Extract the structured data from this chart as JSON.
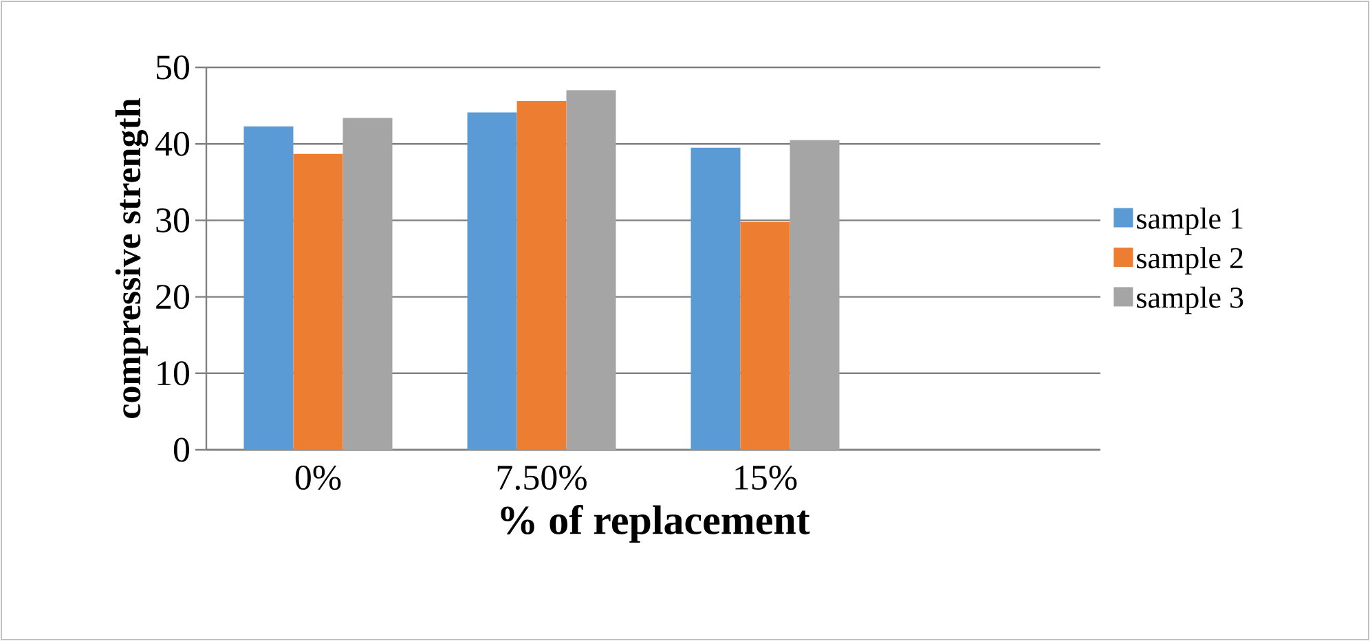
{
  "chart_data": {
    "type": "bar",
    "xlabel": "% of replacement",
    "ylabel": "compressive strength",
    "categories": [
      "0%",
      "7.50%",
      "15%",
      null
    ],
    "series": [
      {
        "name": "sample 1",
        "color": "#5b9bd5",
        "values": [
          42.3,
          44.1,
          39.5,
          null
        ]
      },
      {
        "name": "sample 2",
        "color": "#ed7d31",
        "values": [
          38.7,
          45.6,
          29.8,
          null
        ]
      },
      {
        "name": "sample 3",
        "color": "#a5a5a5",
        "values": [
          43.4,
          47.0,
          40.5,
          null
        ]
      }
    ],
    "ylim": [
      0,
      50
    ],
    "yticks": [
      0,
      10,
      20,
      30,
      40,
      50
    ],
    "grid": "y",
    "legend": "right"
  }
}
